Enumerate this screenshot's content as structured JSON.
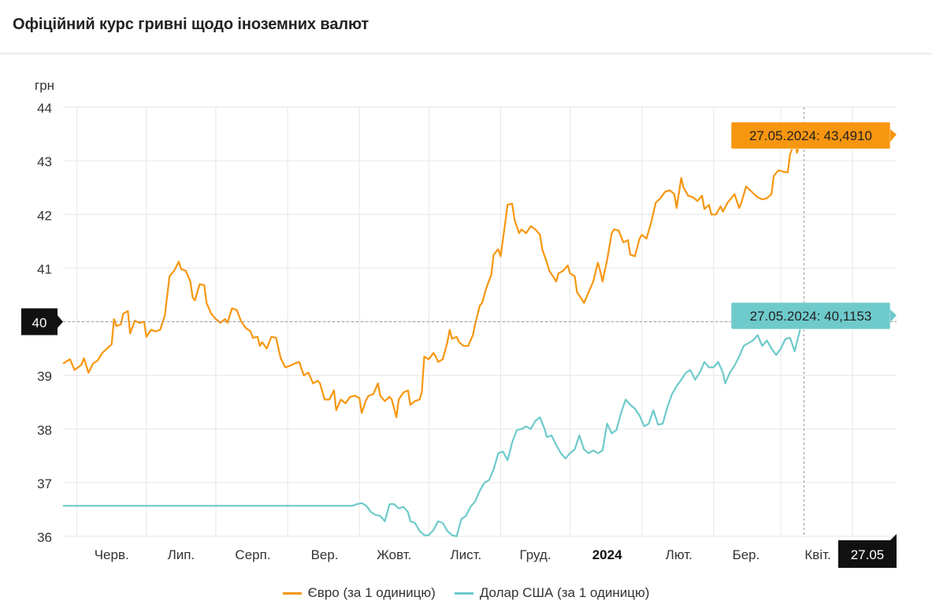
{
  "header": {
    "title": "Офіційний курс гривні щодо іноземних валют"
  },
  "chart_data": {
    "type": "line",
    "title": "Офіційний курс гривні щодо іноземних валют",
    "ylabel": "грн",
    "ylim": [
      36,
      44
    ],
    "yticks": [
      "36",
      "37",
      "38",
      "39",
      "40",
      "41",
      "42",
      "43",
      "44"
    ],
    "highlight_y": {
      "value": 40,
      "label": "40"
    },
    "x_domain": [
      0,
      360
    ],
    "month_ticks": [
      {
        "label": "Черв.",
        "x": 21,
        "bold": false
      },
      {
        "label": "Лип.",
        "x": 51,
        "bold": false
      },
      {
        "label": "Серп.",
        "x": 82,
        "bold": false
      },
      {
        "label": "Вер.",
        "x": 113,
        "bold": false
      },
      {
        "label": "Жовт.",
        "x": 143,
        "bold": false
      },
      {
        "label": "Лист.",
        "x": 174,
        "bold": false
      },
      {
        "label": "Груд.",
        "x": 204,
        "bold": false
      },
      {
        "label": "2024",
        "x": 235,
        "bold": true
      },
      {
        "label": "Лют.",
        "x": 266,
        "bold": false
      },
      {
        "label": "Бер.",
        "x": 295,
        "bold": false
      },
      {
        "label": "Квіт.",
        "x": 326,
        "bold": false
      }
    ],
    "gridlines_x": [
      6,
      36,
      66,
      97,
      128,
      158,
      189,
      219,
      250,
      281,
      310,
      341
    ],
    "end_label": "27.05",
    "series": [
      {
        "name": "Євро (за 1 одиницю)",
        "color": "#f7960f",
        "end_label": "27.05.2024: 43,4910",
        "points": [
          [
            0,
            39.22
          ],
          [
            3,
            39.3
          ],
          [
            5,
            39.1
          ],
          [
            8,
            39.2
          ],
          [
            9,
            39.32
          ],
          [
            11,
            39.05
          ],
          [
            13,
            39.22
          ],
          [
            15,
            39.28
          ],
          [
            17,
            39.42
          ],
          [
            19,
            39.5
          ],
          [
            21,
            39.58
          ],
          [
            22,
            40.05
          ],
          [
            23,
            39.92
          ],
          [
            25,
            39.95
          ],
          [
            26,
            40.15
          ],
          [
            28,
            40.2
          ],
          [
            29,
            39.78
          ],
          [
            31,
            40.02
          ],
          [
            33,
            39.98
          ],
          [
            35,
            40.0
          ],
          [
            36,
            39.72
          ],
          [
            38,
            39.85
          ],
          [
            40,
            39.82
          ],
          [
            42,
            39.85
          ],
          [
            44,
            40.12
          ],
          [
            46,
            40.85
          ],
          [
            48,
            40.95
          ],
          [
            50,
            41.12
          ],
          [
            51,
            40.98
          ],
          [
            53,
            40.95
          ],
          [
            55,
            40.75
          ],
          [
            56,
            40.45
          ],
          [
            57,
            40.4
          ],
          [
            59,
            40.7
          ],
          [
            61,
            40.68
          ],
          [
            62,
            40.35
          ],
          [
            64,
            40.15
          ],
          [
            66,
            40.05
          ],
          [
            68,
            39.98
          ],
          [
            70,
            40.05
          ],
          [
            71,
            39.98
          ],
          [
            73,
            40.25
          ],
          [
            75,
            40.22
          ],
          [
            77,
            40.0
          ],
          [
            79,
            39.88
          ],
          [
            81,
            39.82
          ],
          [
            82,
            39.7
          ],
          [
            84,
            39.72
          ],
          [
            85,
            39.55
          ],
          [
            86,
            39.62
          ],
          [
            88,
            39.5
          ],
          [
            90,
            39.72
          ],
          [
            92,
            39.7
          ],
          [
            94,
            39.32
          ],
          [
            96,
            39.15
          ],
          [
            98,
            39.18
          ],
          [
            100,
            39.22
          ],
          [
            102,
            39.25
          ],
          [
            104,
            39.0
          ],
          [
            106,
            39.05
          ],
          [
            108,
            38.85
          ],
          [
            110,
            38.9
          ],
          [
            111,
            38.85
          ],
          [
            113,
            38.55
          ],
          [
            115,
            38.55
          ],
          [
            117,
            38.72
          ],
          [
            118,
            38.35
          ],
          [
            120,
            38.55
          ],
          [
            122,
            38.48
          ],
          [
            124,
            38.6
          ],
          [
            126,
            38.62
          ],
          [
            128,
            38.58
          ],
          [
            129,
            38.3
          ],
          [
            131,
            38.55
          ],
          [
            132,
            38.62
          ],
          [
            134,
            38.65
          ],
          [
            136,
            38.85
          ],
          [
            137,
            38.62
          ],
          [
            139,
            38.52
          ],
          [
            141,
            38.6
          ],
          [
            142,
            38.55
          ],
          [
            143,
            38.38
          ],
          [
            144,
            38.22
          ],
          [
            145,
            38.55
          ],
          [
            147,
            38.68
          ],
          [
            149,
            38.72
          ],
          [
            150,
            38.45
          ],
          [
            152,
            38.52
          ],
          [
            154,
            38.55
          ],
          [
            155,
            38.7
          ],
          [
            156,
            39.35
          ],
          [
            158,
            39.3
          ],
          [
            160,
            39.42
          ],
          [
            161,
            39.35
          ],
          [
            162,
            39.25
          ],
          [
            164,
            39.3
          ],
          [
            166,
            39.62
          ],
          [
            167,
            39.85
          ],
          [
            168,
            39.68
          ],
          [
            170,
            39.72
          ],
          [
            171,
            39.62
          ],
          [
            173,
            39.55
          ],
          [
            175,
            39.55
          ],
          [
            177,
            39.75
          ],
          [
            178,
            39.95
          ],
          [
            180,
            40.3
          ],
          [
            181,
            40.35
          ],
          [
            183,
            40.65
          ],
          [
            185,
            40.88
          ],
          [
            186,
            41.25
          ],
          [
            188,
            41.35
          ],
          [
            189,
            41.22
          ],
          [
            191,
            41.85
          ],
          [
            192,
            42.18
          ],
          [
            194,
            42.2
          ],
          [
            195,
            41.9
          ],
          [
            197,
            41.65
          ],
          [
            198,
            41.72
          ],
          [
            200,
            41.65
          ],
          [
            202,
            41.78
          ],
          [
            204,
            41.72
          ],
          [
            206,
            41.62
          ],
          [
            207,
            41.35
          ],
          [
            209,
            41.1
          ],
          [
            210,
            40.95
          ],
          [
            212,
            40.82
          ],
          [
            213,
            40.75
          ],
          [
            214,
            40.9
          ],
          [
            216,
            40.95
          ],
          [
            218,
            41.05
          ],
          [
            219,
            40.9
          ],
          [
            221,
            40.85
          ],
          [
            222,
            40.55
          ],
          [
            224,
            40.42
          ],
          [
            225,
            40.35
          ],
          [
            227,
            40.55
          ],
          [
            229,
            40.75
          ],
          [
            231,
            41.1
          ],
          [
            232,
            40.95
          ],
          [
            233,
            40.75
          ],
          [
            235,
            41.15
          ],
          [
            237,
            41.65
          ],
          [
            238,
            41.72
          ],
          [
            240,
            41.7
          ],
          [
            242,
            41.48
          ],
          [
            244,
            41.52
          ],
          [
            245,
            41.25
          ],
          [
            247,
            41.22
          ],
          [
            249,
            41.55
          ],
          [
            250,
            41.62
          ],
          [
            252,
            41.55
          ],
          [
            254,
            41.85
          ],
          [
            256,
            42.22
          ],
          [
            258,
            42.3
          ],
          [
            260,
            42.42
          ],
          [
            262,
            42.45
          ],
          [
            264,
            42.38
          ],
          [
            265,
            42.12
          ],
          [
            267,
            42.68
          ],
          [
            268,
            42.5
          ],
          [
            270,
            42.35
          ],
          [
            272,
            42.32
          ],
          [
            274,
            42.25
          ],
          [
            276,
            42.35
          ],
          [
            277,
            42.1
          ],
          [
            279,
            42.18
          ],
          [
            280,
            42.0
          ],
          [
            282,
            42.0
          ],
          [
            284,
            42.15
          ],
          [
            285,
            42.05
          ],
          [
            287,
            42.22
          ],
          [
            289,
            42.32
          ],
          [
            290,
            42.38
          ],
          [
            292,
            42.12
          ],
          [
            293,
            42.22
          ],
          [
            295,
            42.52
          ],
          [
            296,
            42.48
          ],
          [
            298,
            42.4
          ],
          [
            300,
            42.32
          ],
          [
            302,
            42.28
          ],
          [
            304,
            42.3
          ],
          [
            306,
            42.38
          ],
          [
            307,
            42.72
          ],
          [
            309,
            42.82
          ],
          [
            311,
            42.8
          ],
          [
            313,
            42.78
          ],
          [
            314,
            43.12
          ],
          [
            316,
            43.35
          ],
          [
            317,
            43.15
          ],
          [
            319,
            43.4
          ],
          [
            320,
            43.49
          ]
        ]
      },
      {
        "name": "Долар США (за 1 одиницю)",
        "color": "#6ecacb",
        "end_label": "27.05.2024: 40,1153",
        "points": [
          [
            0,
            36.57
          ],
          [
            125,
            36.57
          ],
          [
            127,
            36.6
          ],
          [
            129,
            36.62
          ],
          [
            131,
            36.57
          ],
          [
            133,
            36.45
          ],
          [
            135,
            36.4
          ],
          [
            137,
            36.38
          ],
          [
            139,
            36.28
          ],
          [
            141,
            36.6
          ],
          [
            143,
            36.6
          ],
          [
            145,
            36.52
          ],
          [
            147,
            36.55
          ],
          [
            149,
            36.45
          ],
          [
            150,
            36.28
          ],
          [
            152,
            36.25
          ],
          [
            154,
            36.1
          ],
          [
            156,
            36.02
          ],
          [
            158,
            36.02
          ],
          [
            160,
            36.12
          ],
          [
            162,
            36.28
          ],
          [
            164,
            36.25
          ],
          [
            166,
            36.1
          ],
          [
            168,
            36.02
          ],
          [
            170,
            36.0
          ],
          [
            172,
            36.32
          ],
          [
            174,
            36.38
          ],
          [
            176,
            36.55
          ],
          [
            178,
            36.65
          ],
          [
            180,
            36.85
          ],
          [
            182,
            37.0
          ],
          [
            184,
            37.05
          ],
          [
            186,
            37.25
          ],
          [
            188,
            37.55
          ],
          [
            190,
            37.58
          ],
          [
            192,
            37.42
          ],
          [
            194,
            37.75
          ],
          [
            196,
            37.98
          ],
          [
            198,
            38.0
          ],
          [
            200,
            38.05
          ],
          [
            202,
            38.0
          ],
          [
            204,
            38.15
          ],
          [
            206,
            38.22
          ],
          [
            208,
            38.0
          ],
          [
            209,
            37.85
          ],
          [
            211,
            37.88
          ],
          [
            213,
            37.7
          ],
          [
            215,
            37.55
          ],
          [
            217,
            37.45
          ],
          [
            219,
            37.55
          ],
          [
            221,
            37.62
          ],
          [
            223,
            37.88
          ],
          [
            225,
            37.62
          ],
          [
            227,
            37.55
          ],
          [
            229,
            37.6
          ],
          [
            231,
            37.55
          ],
          [
            233,
            37.6
          ],
          [
            235,
            38.1
          ],
          [
            237,
            37.92
          ],
          [
            239,
            37.98
          ],
          [
            241,
            38.3
          ],
          [
            243,
            38.55
          ],
          [
            245,
            38.45
          ],
          [
            247,
            38.38
          ],
          [
            249,
            38.25
          ],
          [
            251,
            38.05
          ],
          [
            253,
            38.1
          ],
          [
            255,
            38.35
          ],
          [
            257,
            38.08
          ],
          [
            259,
            38.1
          ],
          [
            261,
            38.4
          ],
          [
            263,
            38.65
          ],
          [
            265,
            38.8
          ],
          [
            267,
            38.92
          ],
          [
            269,
            39.05
          ],
          [
            271,
            39.1
          ],
          [
            273,
            38.92
          ],
          [
            275,
            39.05
          ],
          [
            277,
            39.25
          ],
          [
            279,
            39.15
          ],
          [
            281,
            39.15
          ],
          [
            283,
            39.25
          ],
          [
            285,
            39.05
          ],
          [
            286,
            38.85
          ],
          [
            288,
            39.05
          ],
          [
            290,
            39.18
          ],
          [
            292,
            39.35
          ],
          [
            294,
            39.55
          ],
          [
            296,
            39.6
          ],
          [
            298,
            39.65
          ],
          [
            300,
            39.75
          ],
          [
            302,
            39.55
          ],
          [
            304,
            39.65
          ],
          [
            306,
            39.5
          ],
          [
            308,
            39.38
          ],
          [
            310,
            39.5
          ],
          [
            312,
            39.68
          ],
          [
            314,
            39.7
          ],
          [
            316,
            39.45
          ],
          [
            318,
            39.8
          ],
          [
            320,
            40.12
          ]
        ]
      }
    ]
  },
  "legend": [
    {
      "label": "Євро (за 1 одиницю)",
      "color": "#f7960f"
    },
    {
      "label": "Долар США (за 1 одиницю)",
      "color": "#6ecacb"
    }
  ]
}
